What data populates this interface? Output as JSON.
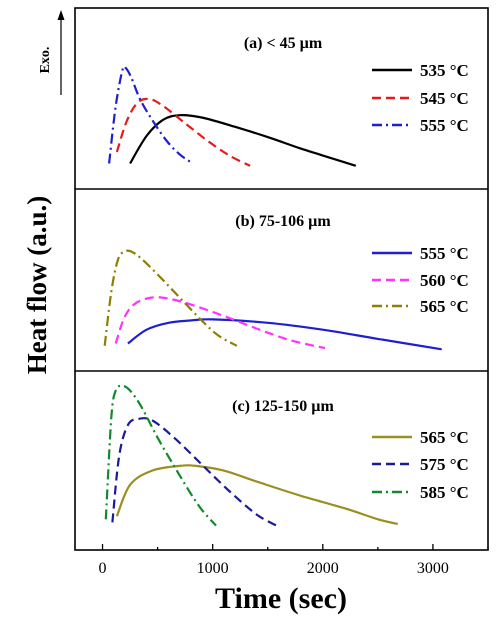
{
  "chart_data": {
    "type": "line",
    "ylabel": "Heat flow (a.u.)",
    "xlabel": "Time (sec)",
    "exo_label": "Exo.",
    "xlim": [
      -250,
      3500
    ],
    "xticks": [
      0,
      1000,
      2000,
      3000
    ],
    "xtick_labels": [
      "0",
      "1000",
      "2000",
      "3000"
    ],
    "grid": false,
    "legend_placement": "right",
    "panels": [
      {
        "title": "(a) < 45 µm",
        "ylim": [
          0,
          1
        ],
        "series": [
          {
            "name": "535 °C",
            "color": "#000000",
            "dash": "",
            "x": [
              250,
              400,
              550,
              700,
              900,
              1200,
              1500,
              1800,
              2100,
              2300
            ],
            "y": [
              0.1,
              0.34,
              0.48,
              0.52,
              0.5,
              0.42,
              0.33,
              0.23,
              0.14,
              0.08
            ]
          },
          {
            "name": "545 °C",
            "color": "#e41a1c",
            "dash": "9,5",
            "x": [
              130,
              220,
              320,
              430,
              550,
              750,
              950,
              1150,
              1340
            ],
            "y": [
              0.2,
              0.47,
              0.63,
              0.66,
              0.6,
              0.45,
              0.3,
              0.17,
              0.08
            ]
          },
          {
            "name": "555 °C",
            "color": "#1f1fd0",
            "dash": "10,4,2,4",
            "x": [
              60,
              120,
              180,
              210,
              260,
              340,
              450,
              580,
              700,
              820
            ],
            "y": [
              0.1,
              0.6,
              0.91,
              0.93,
              0.85,
              0.66,
              0.48,
              0.3,
              0.18,
              0.1
            ]
          }
        ]
      },
      {
        "title": "(b) 75-106 µm",
        "ylim": [
          0,
          1
        ],
        "series": [
          {
            "name": "555 °C",
            "color": "#1f1fd0",
            "dash": "",
            "x": [
              230,
              400,
              600,
              800,
              1000,
              1500,
              2000,
              2500,
              3080
            ],
            "y": [
              0.1,
              0.22,
              0.28,
              0.3,
              0.31,
              0.28,
              0.22,
              0.14,
              0.05
            ]
          },
          {
            "name": "560 °C",
            "color": "#ff33ff",
            "dash": "9,5",
            "x": [
              120,
              200,
              300,
              450,
              600,
              800,
              1100,
              1400,
              1700,
              2020
            ],
            "y": [
              0.1,
              0.33,
              0.45,
              0.5,
              0.49,
              0.44,
              0.34,
              0.23,
              0.13,
              0.06
            ]
          },
          {
            "name": "565 °C",
            "color": "#8b8000",
            "dash": "10,4,2,4",
            "x": [
              20,
              80,
              140,
              200,
              260,
              350,
              500,
              700,
              900,
              1050,
              1220
            ],
            "y": [
              0.08,
              0.55,
              0.83,
              0.9,
              0.9,
              0.84,
              0.7,
              0.5,
              0.3,
              0.17,
              0.08
            ]
          }
        ]
      },
      {
        "title": "(c) 125-150 µm",
        "ylim": [
          0,
          1
        ],
        "series": [
          {
            "name": "565 °C",
            "color": "#9a8f20",
            "dash": "",
            "x": [
              130,
              250,
              450,
              700,
              850,
              1100,
              1400,
              1800,
              2200,
              2500,
              2680
            ],
            "y": [
              0.12,
              0.32,
              0.41,
              0.44,
              0.44,
              0.41,
              0.34,
              0.25,
              0.17,
              0.1,
              0.07
            ]
          },
          {
            "name": "575 °C",
            "color": "#1a1a9a",
            "dash": "9,5",
            "x": [
              90,
              150,
              230,
              330,
              450,
              650,
              900,
              1150,
              1400,
              1580
            ],
            "y": [
              0.08,
              0.5,
              0.7,
              0.74,
              0.73,
              0.62,
              0.45,
              0.28,
              0.13,
              0.06
            ]
          },
          {
            "name": "585 °C",
            "color": "#128a2c",
            "dash": "10,4,2,4",
            "x": [
              30,
              80,
              120,
              180,
              250,
              350,
              500,
              700,
              880,
              1030
            ],
            "y": [
              0.1,
              0.75,
              0.92,
              0.95,
              0.92,
              0.82,
              0.62,
              0.38,
              0.18,
              0.06
            ]
          }
        ]
      }
    ]
  }
}
